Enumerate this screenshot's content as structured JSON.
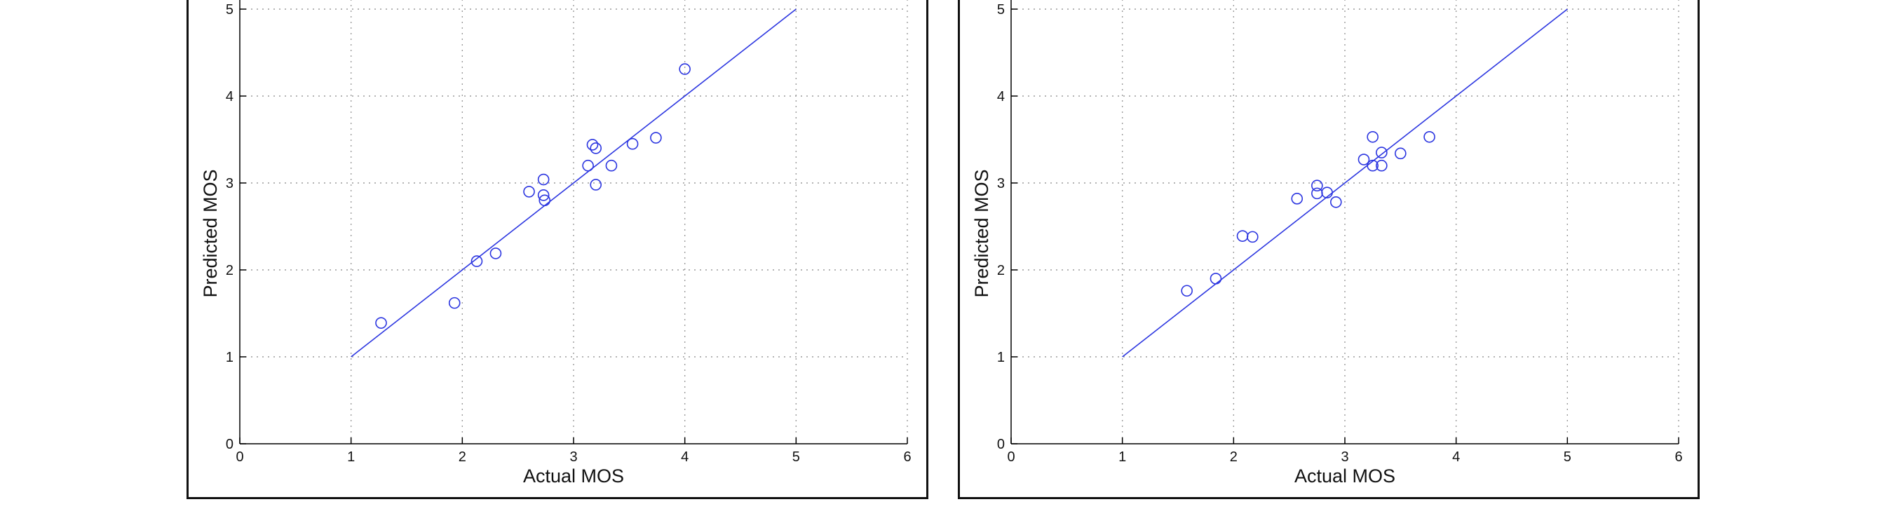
{
  "colors": {
    "series": "#2b35e0",
    "axis": "#000000",
    "grid": "#9a9a9a"
  },
  "chart_data": [
    {
      "type": "scatter",
      "xlabel": "Actual MOS",
      "ylabel": "Predicted MOS",
      "xlim": [
        0,
        6
      ],
      "ylim": [
        0,
        5
      ],
      "xticks": [
        "0",
        "1",
        "2",
        "3",
        "4",
        "5",
        "6"
      ],
      "yticks": [
        "0",
        "1",
        "2",
        "3",
        "4",
        "5"
      ],
      "grid": true,
      "reference_line": {
        "x": [
          1,
          5
        ],
        "y": [
          1,
          5
        ]
      },
      "points": [
        {
          "x": 1.27,
          "y": 1.39
        },
        {
          "x": 1.93,
          "y": 1.62
        },
        {
          "x": 2.13,
          "y": 2.1
        },
        {
          "x": 2.3,
          "y": 2.19
        },
        {
          "x": 2.6,
          "y": 2.9
        },
        {
          "x": 2.73,
          "y": 3.04
        },
        {
          "x": 2.73,
          "y": 2.86
        },
        {
          "x": 2.74,
          "y": 2.8
        },
        {
          "x": 3.13,
          "y": 3.2
        },
        {
          "x": 3.17,
          "y": 3.44
        },
        {
          "x": 3.2,
          "y": 3.4
        },
        {
          "x": 3.2,
          "y": 2.98
        },
        {
          "x": 3.34,
          "y": 3.2
        },
        {
          "x": 3.53,
          "y": 3.45
        },
        {
          "x": 3.74,
          "y": 3.52
        },
        {
          "x": 4.0,
          "y": 4.31
        }
      ]
    },
    {
      "type": "scatter",
      "xlabel": "Actual MOS",
      "ylabel": "Predicted MOS",
      "xlim": [
        0,
        6
      ],
      "ylim": [
        0,
        5
      ],
      "xticks": [
        "0",
        "1",
        "2",
        "3",
        "4",
        "5",
        "6"
      ],
      "yticks": [
        "0",
        "1",
        "2",
        "3",
        "4",
        "5"
      ],
      "grid": true,
      "reference_line": {
        "x": [
          1,
          5
        ],
        "y": [
          1,
          5
        ]
      },
      "points": [
        {
          "x": 1.58,
          "y": 1.76
        },
        {
          "x": 1.84,
          "y": 1.9
        },
        {
          "x": 2.08,
          "y": 2.39
        },
        {
          "x": 2.17,
          "y": 2.38
        },
        {
          "x": 2.57,
          "y": 2.82
        },
        {
          "x": 2.75,
          "y": 2.97
        },
        {
          "x": 2.75,
          "y": 2.88
        },
        {
          "x": 2.84,
          "y": 2.89
        },
        {
          "x": 2.92,
          "y": 2.78
        },
        {
          "x": 3.17,
          "y": 3.27
        },
        {
          "x": 3.25,
          "y": 3.53
        },
        {
          "x": 3.25,
          "y": 3.2
        },
        {
          "x": 3.33,
          "y": 3.35
        },
        {
          "x": 3.33,
          "y": 3.2
        },
        {
          "x": 3.5,
          "y": 3.34
        },
        {
          "x": 3.76,
          "y": 3.53
        }
      ]
    }
  ]
}
